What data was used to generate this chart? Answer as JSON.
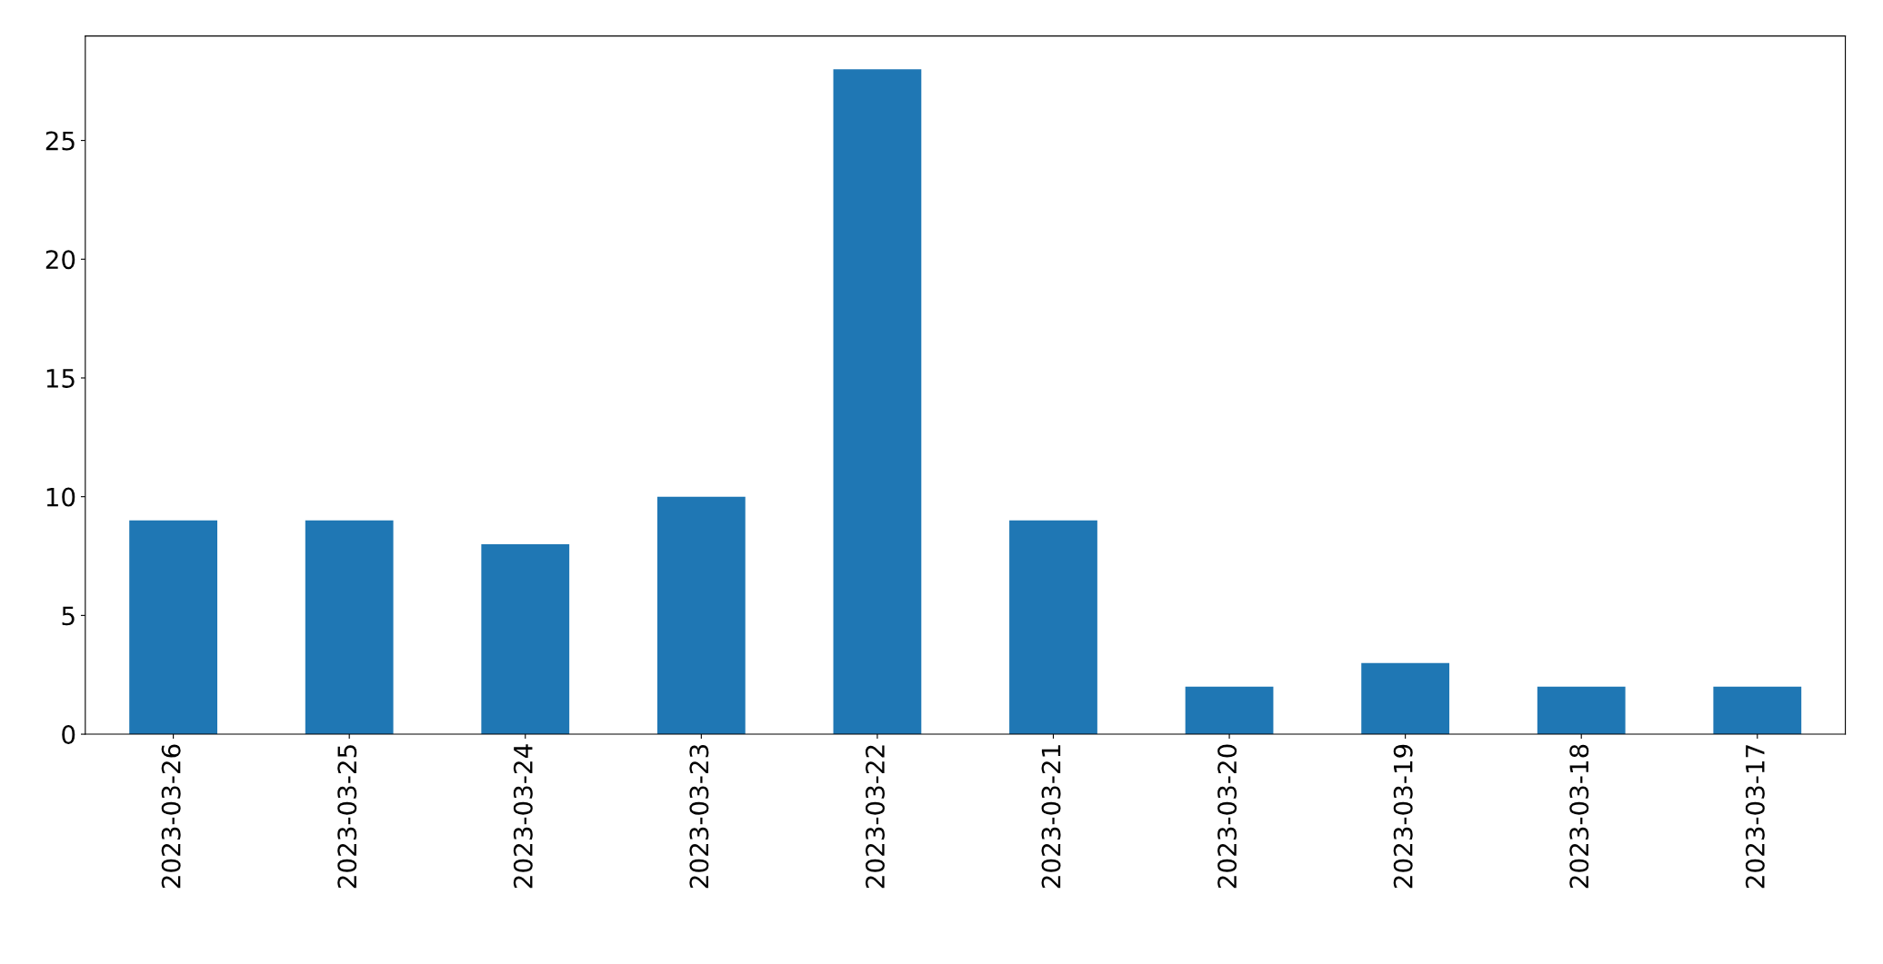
{
  "chart_data": {
    "type": "bar",
    "categories": [
      "2023-03-26",
      "2023-03-25",
      "2023-03-24",
      "2023-03-23",
      "2023-03-22",
      "2023-03-21",
      "2023-03-20",
      "2023-03-19",
      "2023-03-18",
      "2023-03-17"
    ],
    "values": [
      9,
      9,
      8,
      10,
      28,
      9,
      2,
      3,
      2,
      2
    ],
    "color": "#1f77b4",
    "ylim": [
      0,
      29.4
    ],
    "yticks": [
      0,
      5,
      10,
      15,
      20,
      25
    ],
    "grid": false,
    "legend": false
  }
}
